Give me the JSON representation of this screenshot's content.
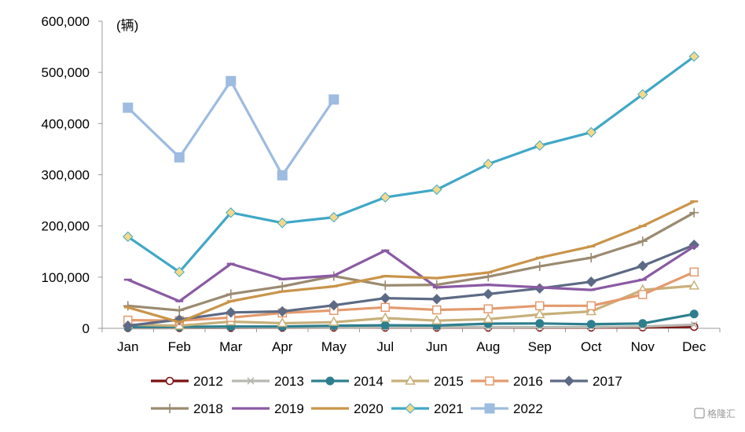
{
  "chart_data": {
    "type": "line",
    "unit_label": "(辆)",
    "categories": [
      "Jan",
      "Feb",
      "Mar",
      "Apr",
      "May",
      "Jul",
      "Jun",
      "Aug",
      "Sep",
      "Oct",
      "Nov",
      "Dec"
    ],
    "ylim": [
      0,
      600000
    ],
    "yticks": [
      0,
      100000,
      200000,
      300000,
      400000,
      500000,
      600000
    ],
    "ytick_labels": [
      "0",
      "100,000",
      "200,000",
      "300,000",
      "400,000",
      "500,000",
      "600,000"
    ],
    "grid": false,
    "legend_position": "bottom",
    "series": [
      {
        "name": "2012",
        "color": "#7b1111",
        "marker": "circle-open",
        "values": [
          800,
          800,
          1000,
          1200,
          1500,
          1500,
          1500,
          1500,
          1600,
          1700,
          2000,
          3000
        ]
      },
      {
        "name": "2013",
        "color": "#b8b8b0",
        "marker": "x",
        "values": [
          1000,
          1000,
          1500,
          1500,
          1600,
          1800,
          1800,
          1900,
          2000,
          2500,
          3500,
          7000
        ]
      },
      {
        "name": "2014",
        "color": "#2e7f8e",
        "marker": "circle",
        "values": [
          2500,
          2800,
          3500,
          3500,
          5000,
          6000,
          5500,
          9000,
          9500,
          8000,
          9500,
          28000
        ]
      },
      {
        "name": "2015",
        "color": "#c7b07a",
        "marker": "triangle-open",
        "values": [
          7000,
          5000,
          13000,
          10000,
          12000,
          20000,
          15000,
          18000,
          27000,
          33000,
          75000,
          83000
        ]
      },
      {
        "name": "2016",
        "color": "#e39a6e",
        "marker": "square-open",
        "values": [
          16000,
          15000,
          21000,
          30000,
          35000,
          41000,
          36000,
          38000,
          44000,
          44000,
          66000,
          110000
        ]
      },
      {
        "name": "2017",
        "color": "#5d6a85",
        "marker": "diamond",
        "values": [
          5000,
          17000,
          31000,
          33000,
          45000,
          59000,
          57000,
          67000,
          78000,
          91000,
          122000,
          163000
        ]
      },
      {
        "name": "2018",
        "color": "#9a8a70",
        "marker": "plus",
        "values": [
          44000,
          35000,
          67000,
          82000,
          102000,
          84000,
          85000,
          101000,
          121000,
          138000,
          170000,
          226000
        ]
      },
      {
        "name": "2019",
        "color": "#8a5aa3",
        "marker": "dash",
        "values": [
          95000,
          53000,
          126000,
          96000,
          103000,
          152000,
          80000,
          85000,
          80000,
          75000,
          95000,
          160000
        ]
      },
      {
        "name": "2020",
        "color": "#c9944a",
        "marker": "dash",
        "values": [
          41000,
          12000,
          53000,
          72000,
          82000,
          102000,
          98000,
          109000,
          138000,
          160000,
          200000,
          248000
        ]
      },
      {
        "name": "2021",
        "color": "#40a7c6",
        "marker": "diamond-yellow",
        "values": [
          179000,
          110000,
          226000,
          206000,
          217000,
          256000,
          271000,
          321000,
          357000,
          383000,
          457000,
          531000
        ]
      },
      {
        "name": "2022",
        "color": "#9ebbe0",
        "marker": "square",
        "values": [
          431000,
          334000,
          483000,
          299000,
          447000,
          null,
          null,
          null,
          null,
          null,
          null,
          null
        ]
      }
    ]
  },
  "watermark": {
    "text": "格隆汇"
  }
}
